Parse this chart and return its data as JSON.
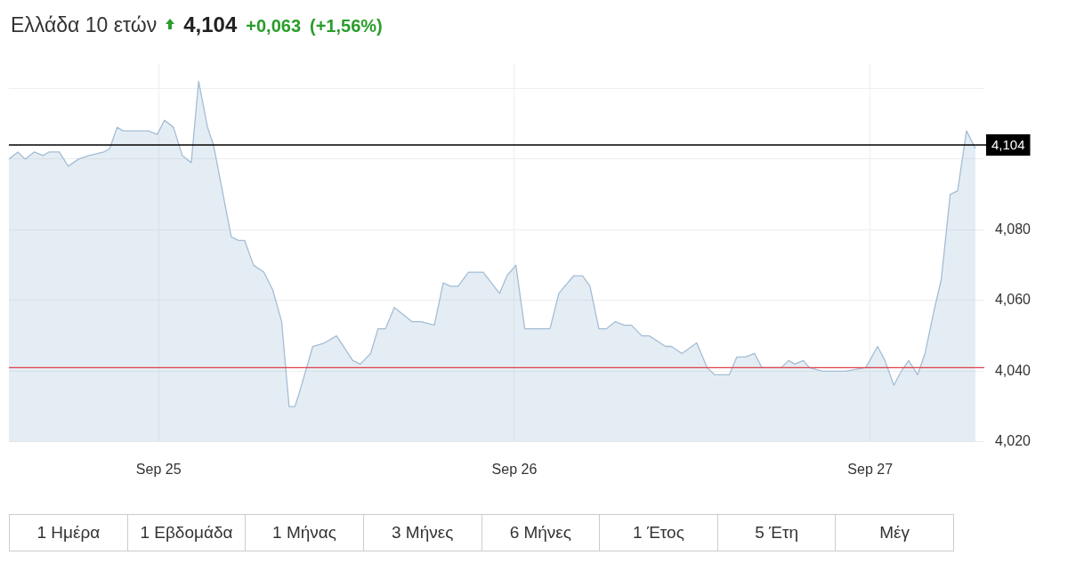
{
  "chart_data": {
    "type": "area",
    "title": "Ελλάδα 10 ετών",
    "annotations": [
      "4,104",
      "+0,063",
      "(+1,56%)",
      "1 Ημέρα",
      "1 Εβδομάδα",
      "1 Μήνας",
      "3 Μήνες",
      "6 Μήνες",
      "1 Έτος",
      "5 Έτη",
      "Μέγ"
    ],
    "x": [
      "--09-24T13:54",
      "--09-24T14:30",
      "--09-24T15:00",
      "--09-24T15:36",
      "--09-24T16:12",
      "--09-24T16:36",
      "--09-24T17:18",
      "--09-24T17:54",
      "--09-24T18:36",
      "--09-24T19:18",
      "--09-24T20:18",
      "--09-24T20:42",
      "--09-24T21:12",
      "--09-24T21:36",
      "--09-24T22:42",
      "--09-24T23:18",
      "--09-24T23:54",
      "--09-25T00:24",
      "--09-25T01:00",
      "--09-25T01:36",
      "--09-25T02:12",
      "--09-25T02:42",
      "--09-25T03:18",
      "--09-25T03:42",
      "--09-25T04:54",
      "--09-25T05:24",
      "--09-25T05:48",
      "--09-25T06:24",
      "--09-25T07:06",
      "--09-25T07:42",
      "--09-25T08:18",
      "--09-25T08:48",
      "--09-25T09:12",
      "--09-25T09:30",
      "--09-25T10:24",
      "--09-25T11:12",
      "--09-25T12:00",
      "--09-25T13:06",
      "--09-25T13:36",
      "--09-25T14:18",
      "--09-25T14:48",
      "--09-25T15:18",
      "--09-25T15:54",
      "--09-25T16:30",
      "--09-25T17:06",
      "--09-25T17:42",
      "--09-25T18:36",
      "--09-25T19:12",
      "--09-25T19:42",
      "--09-25T20:12",
      "--09-25T20:54",
      "--09-25T21:24",
      "--09-25T21:54",
      "--09-25T23:00",
      "--09-25T23:30",
      "--09-26T00:06",
      "--09-26T00:42",
      "--09-26T02:24",
      "--09-26T03:00",
      "--09-26T04:00",
      "--09-26T04:36",
      "--09-26T05:06",
      "--09-26T05:42",
      "--09-26T06:12",
      "--09-26T06:48",
      "--09-26T07:24",
      "--09-26T07:54",
      "--09-26T08:36",
      "--09-26T09:06",
      "--09-26T10:12",
      "--09-26T10:36",
      "--09-26T11:18",
      "--09-26T12:18",
      "--09-26T13:00",
      "--09-26T13:30",
      "--09-26T14:30",
      "--09-26T15:00",
      "--09-26T15:36",
      "--09-26T16:12",
      "--09-26T16:42",
      "--09-26T18:00",
      "--09-26T18:30",
      "--09-26T18:54",
      "--09-26T19:30",
      "--09-26T19:54",
      "--09-26T20:48",
      "--09-26T22:18",
      "--09-26T23:42",
      "--09-27T00:30",
      "--09-27T01:00",
      "--09-27T01:36",
      "--09-27T02:06",
      "--09-27T02:36",
      "--09-27T03:12",
      "--09-27T03:42",
      "--09-27T04:18",
      "--09-27T04:48",
      "--09-27T05:24",
      "--09-27T05:54",
      "--09-27T06:30",
      "--09-27T07:06"
    ],
    "series": [
      {
        "color": "#a3bdd6",
        "values": [
          4.1,
          4.102,
          4.1,
          4.102,
          4.101,
          4.102,
          4.102,
          4.098,
          4.1,
          4.101,
          4.102,
          4.103,
          4.109,
          4.108,
          4.108,
          4.108,
          4.107,
          4.111,
          4.109,
          4.101,
          4.099,
          4.122,
          4.109,
          4.104,
          4.078,
          4.077,
          4.077,
          4.07,
          4.068,
          4.063,
          4.054,
          4.03,
          4.03,
          4.034,
          4.047,
          4.048,
          4.05,
          4.043,
          4.042,
          4.045,
          4.052,
          4.052,
          4.058,
          4.056,
          4.054,
          4.054,
          4.053,
          4.065,
          4.064,
          4.064,
          4.068,
          4.068,
          4.068,
          4.062,
          4.067,
          4.07,
          4.052,
          4.052,
          4.062,
          4.067,
          4.067,
          4.064,
          4.052,
          4.052,
          4.054,
          4.053,
          4.053,
          4.05,
          4.05,
          4.047,
          4.047,
          4.045,
          4.048,
          4.041,
          4.039,
          4.039,
          4.044,
          4.044,
          4.045,
          4.041,
          4.041,
          4.043,
          4.042,
          4.043,
          4.041,
          4.04,
          4.04,
          4.041,
          4.047,
          4.043,
          4.036,
          4.04,
          4.043,
          4.039,
          4.045,
          4.057,
          4.066,
          4.09,
          4.091,
          4.108,
          4.103
        ]
      }
    ],
    "xlim": [
      "--09-24T13:54",
      "--09-27T07:42"
    ],
    "xticks": [
      {
        "value": "--09-25",
        "label": "Sep 25"
      },
      {
        "value": "--09-26",
        "label": "Sep 26"
      },
      {
        "value": "--09-27",
        "label": "Sep 27"
      }
    ],
    "ylim": [
      4.02,
      4.127
    ],
    "yticks": [
      {
        "value": 4.02,
        "label": "4,020"
      },
      {
        "value": 4.04,
        "label": "4,040"
      },
      {
        "value": 4.06,
        "label": "4,060"
      },
      {
        "value": 4.08,
        "label": "4,080"
      },
      {
        "value": 4.1,
        "label": null
      },
      {
        "value": 4.12,
        "label": null
      }
    ],
    "ref_lines": [
      {
        "axis": "y",
        "value": 4.104,
        "label": "4,104",
        "color": "#000000"
      },
      {
        "axis": "y",
        "value": 4.041,
        "color": "#e0404a"
      }
    ],
    "grid": true,
    "marker": "none",
    "line_style": "solid"
  }
}
